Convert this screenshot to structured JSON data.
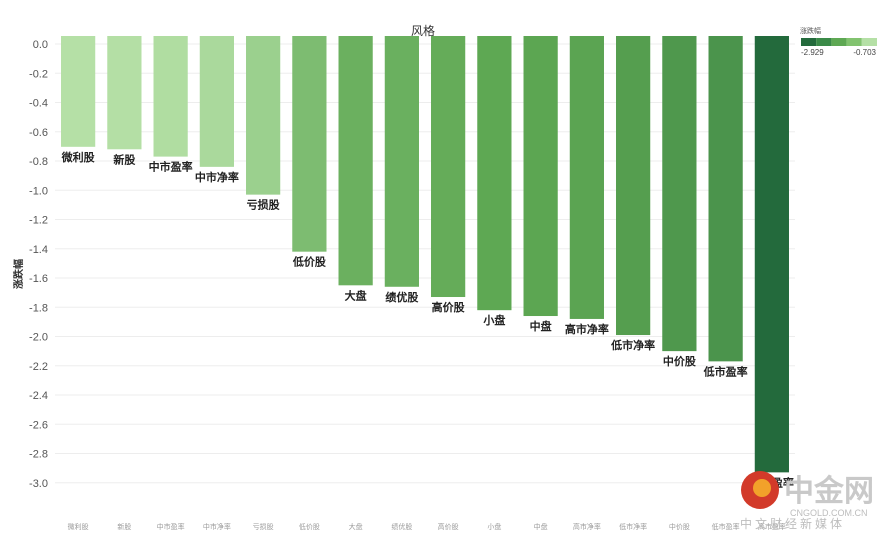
{
  "chart_data": {
    "type": "bar",
    "title": "风格",
    "ylabel": "涨跌幅",
    "xlabel": "",
    "ylim": [
      -3.2,
      0
    ],
    "yticks": [
      0.0,
      -0.2,
      -0.4,
      -0.6,
      -0.8,
      -1.0,
      -1.2,
      -1.4,
      -1.6,
      -1.8,
      -2.0,
      -2.2,
      -2.4,
      -2.6,
      -2.8,
      -3.0
    ],
    "categories": [
      "微利股",
      "新股",
      "中市盈率",
      "中市净率",
      "亏损股",
      "低价股",
      "大盘",
      "绩优股",
      "高价股",
      "小盘",
      "中盘",
      "高市净率",
      "低市净率",
      "中价股",
      "低市盈率",
      "高市盈率"
    ],
    "values": [
      -0.703,
      -0.72,
      -0.77,
      -0.84,
      -1.03,
      -1.42,
      -1.65,
      -1.66,
      -1.73,
      -1.82,
      -1.86,
      -1.88,
      -1.99,
      -2.1,
      -2.17,
      -2.929
    ],
    "grid": true,
    "legend": {
      "title": "涨跌幅",
      "placement": "top-right",
      "min_label": "-2.929",
      "max_label": "-0.703",
      "color_steps": [
        "#236a3c",
        "#3a8a48",
        "#5ea853",
        "#82c36f",
        "#b5e0a6"
      ]
    }
  },
  "watermark": {
    "brand": "中金网",
    "domain": "CNGOLD.COM.CN",
    "tagline": "中文财经新媒体"
  }
}
